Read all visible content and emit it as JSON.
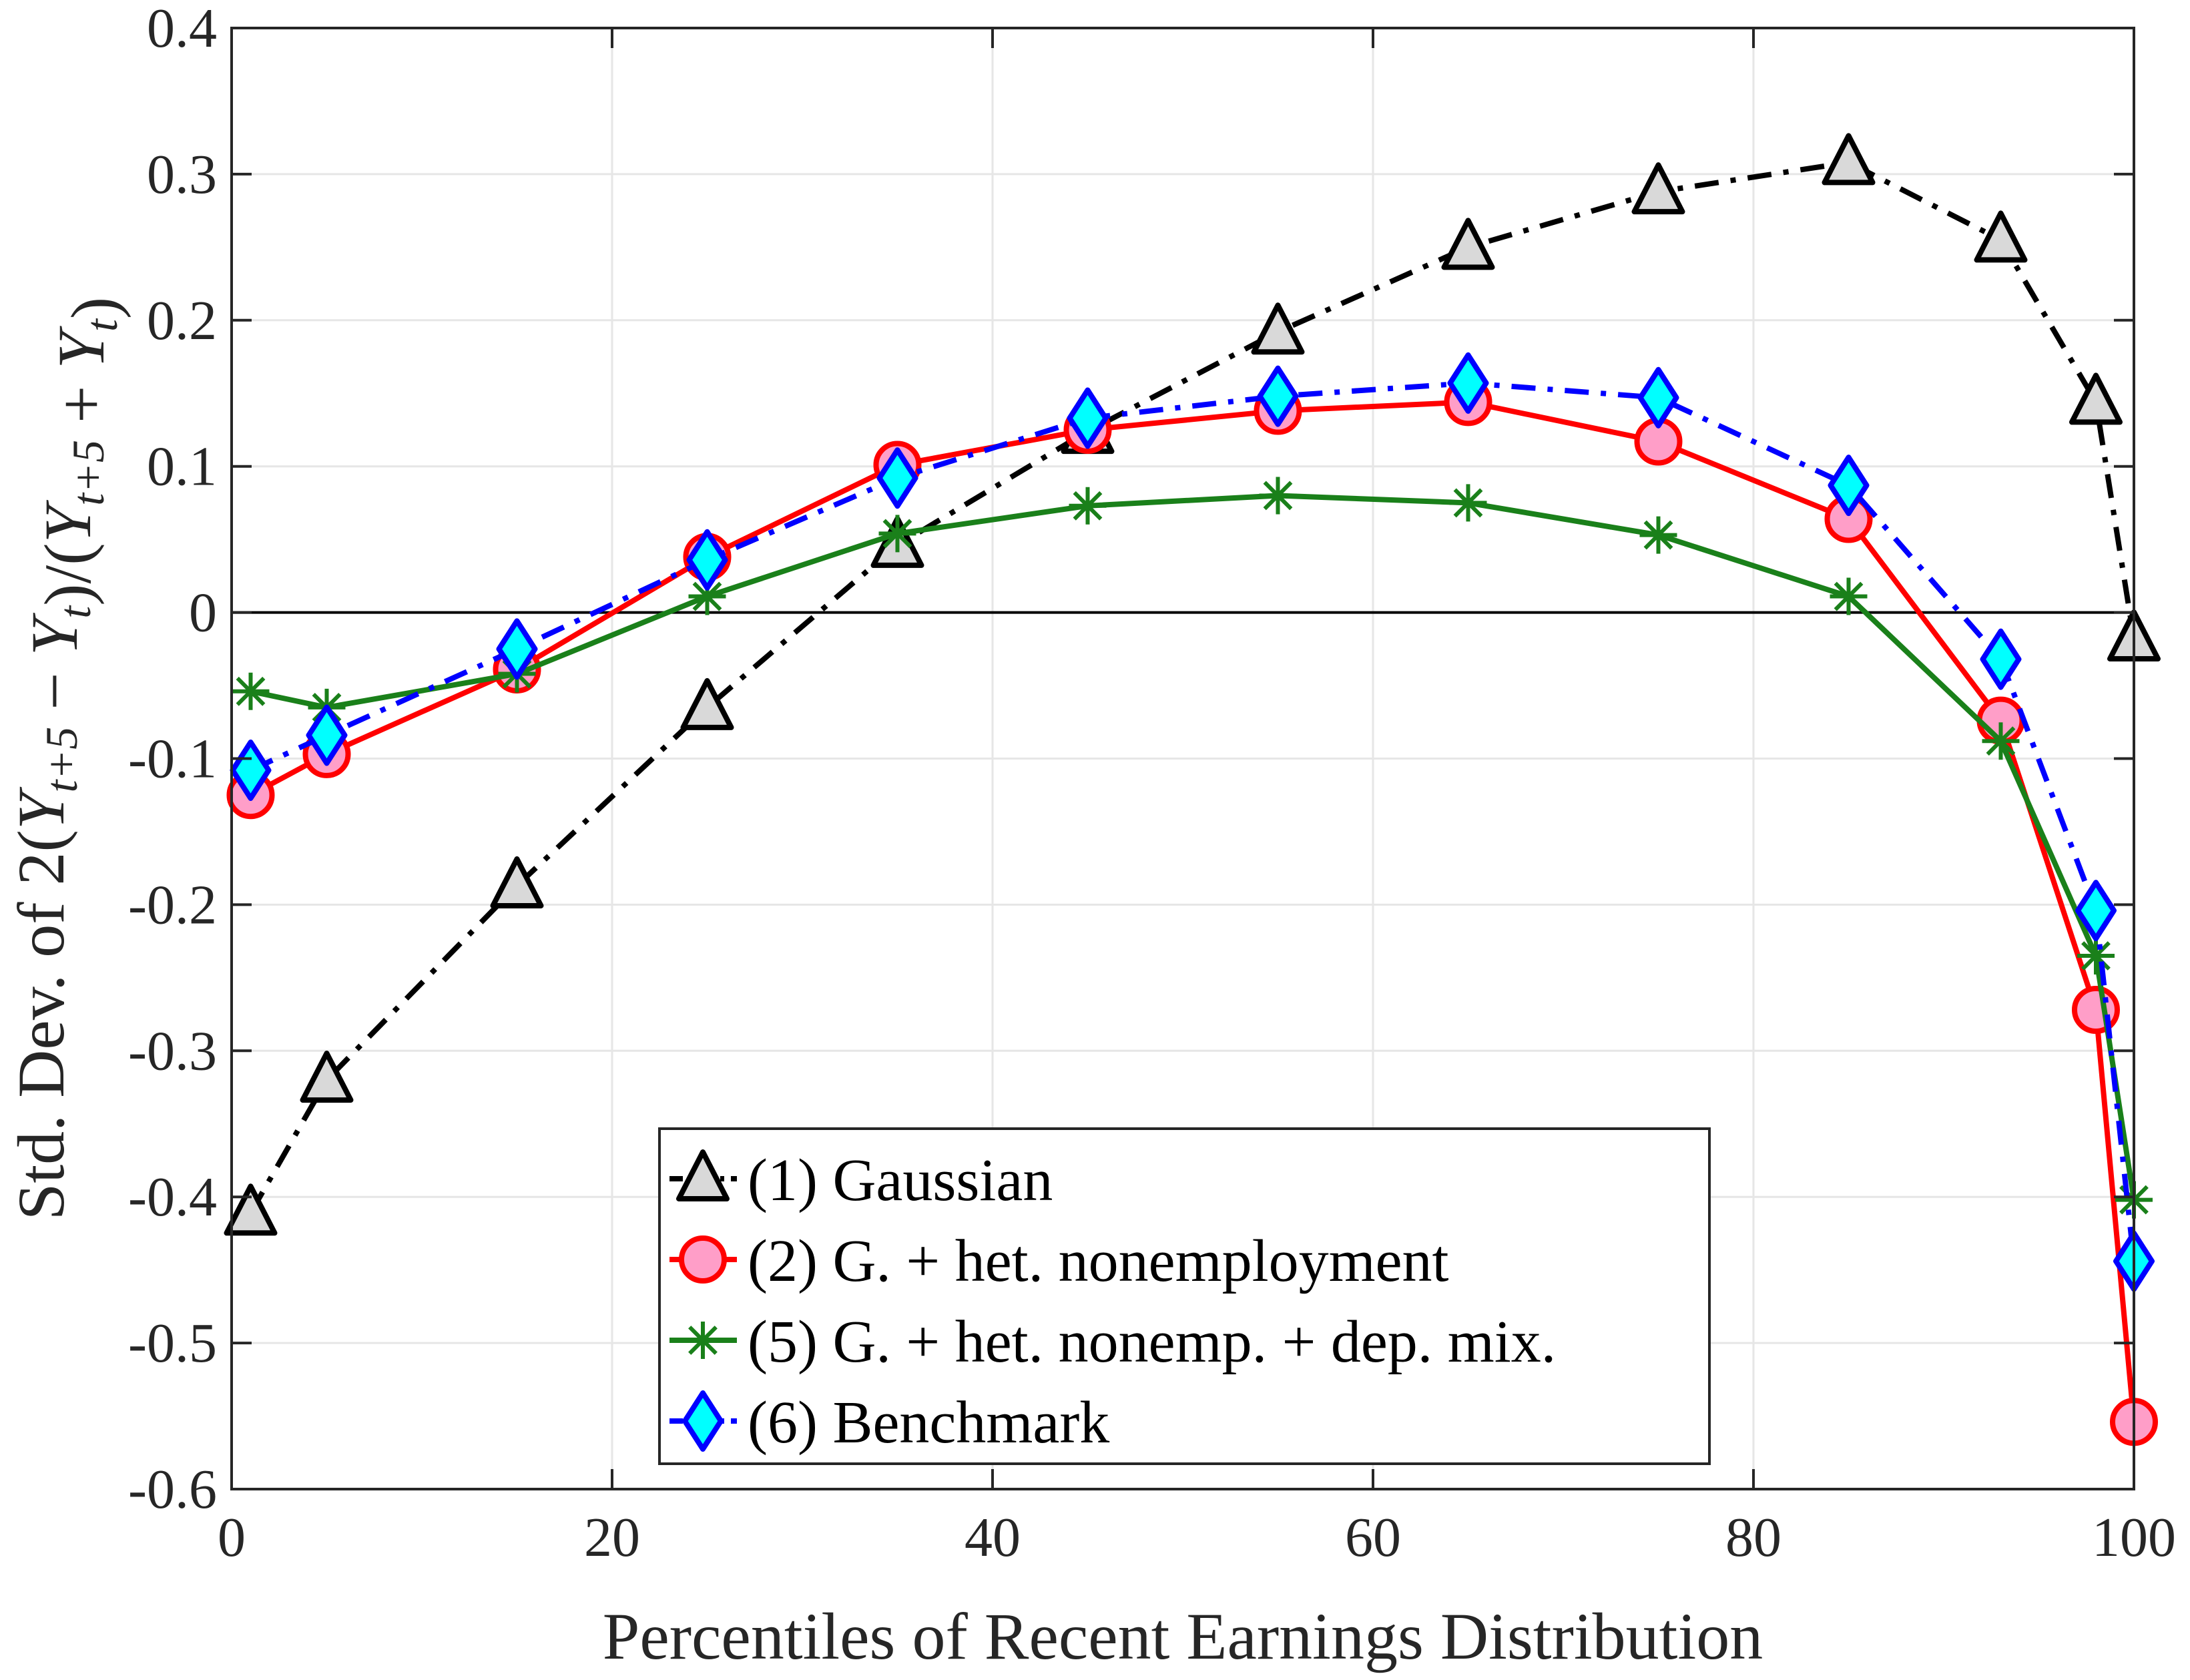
{
  "chart_data": {
    "type": "line",
    "title": "",
    "xlabel": "Percentiles of Recent Earnings Distribution",
    "ylabel": "Std. Dev. of 2(Y_{t+5} − Y_t)/(Y_{t+5} + Y_t)",
    "xlim": [
      0,
      100
    ],
    "ylim": [
      -0.6,
      0.4
    ],
    "xticks": [
      0,
      20,
      40,
      60,
      80,
      100
    ],
    "xtick_labels": [
      "0",
      "20",
      "40",
      "60",
      "80",
      "100"
    ],
    "yticks": [
      -0.6,
      -0.5,
      -0.4,
      -0.3,
      -0.2,
      -0.1,
      0,
      0.1,
      0.2,
      0.3,
      0.4
    ],
    "ytick_labels": [
      "-0.6",
      "-0.5",
      "-0.4",
      "-0.3",
      "-0.2",
      "-0.1",
      "0",
      "0.1",
      "0.2",
      "0.3",
      "0.4"
    ],
    "grid": true,
    "reference_line_y": 0,
    "legend_position": "bottom-center",
    "x": [
      1,
      5,
      15,
      25,
      35,
      45,
      55,
      65,
      75,
      85,
      93,
      98,
      100
    ],
    "series": [
      {
        "name": "(1) Gaussian",
        "line_color": "#000000",
        "marker_fill": "#d9d9d9",
        "marker": "triangle",
        "dash": "dash-dot",
        "values": [
          -0.411,
          -0.32,
          -0.187,
          -0.065,
          0.046,
          0.124,
          0.192,
          0.25,
          0.288,
          0.308,
          0.255,
          0.144,
          -0.018
        ]
      },
      {
        "name": "(2) G. + het. nonemployment",
        "line_color": "#ff0000",
        "marker_fill": "#ff9ec8",
        "marker": "circle",
        "dash": "solid",
        "values": [
          -0.125,
          -0.097,
          -0.039,
          0.038,
          0.101,
          0.125,
          0.138,
          0.144,
          0.117,
          0.064,
          -0.074,
          -0.272,
          -0.554
        ]
      },
      {
        "name": "(5) G. + het. nonemp. + dep. mix.",
        "line_color": "#1a801a",
        "marker_fill": "#1a801a",
        "marker": "asterisk",
        "dash": "solid",
        "values": [
          -0.054,
          -0.065,
          -0.042,
          0.011,
          0.054,
          0.073,
          0.08,
          0.075,
          0.053,
          0.011,
          -0.088,
          -0.235,
          -0.402
        ]
      },
      {
        "name": "(6) Benchmark",
        "line_color": "#0000ff",
        "marker_fill": "#00ffff",
        "marker": "diamond",
        "dash": "dash-dot",
        "values": [
          -0.108,
          -0.084,
          -0.025,
          0.036,
          0.092,
          0.133,
          0.148,
          0.157,
          0.147,
          0.087,
          -0.032,
          -0.204,
          -0.444
        ]
      }
    ]
  }
}
